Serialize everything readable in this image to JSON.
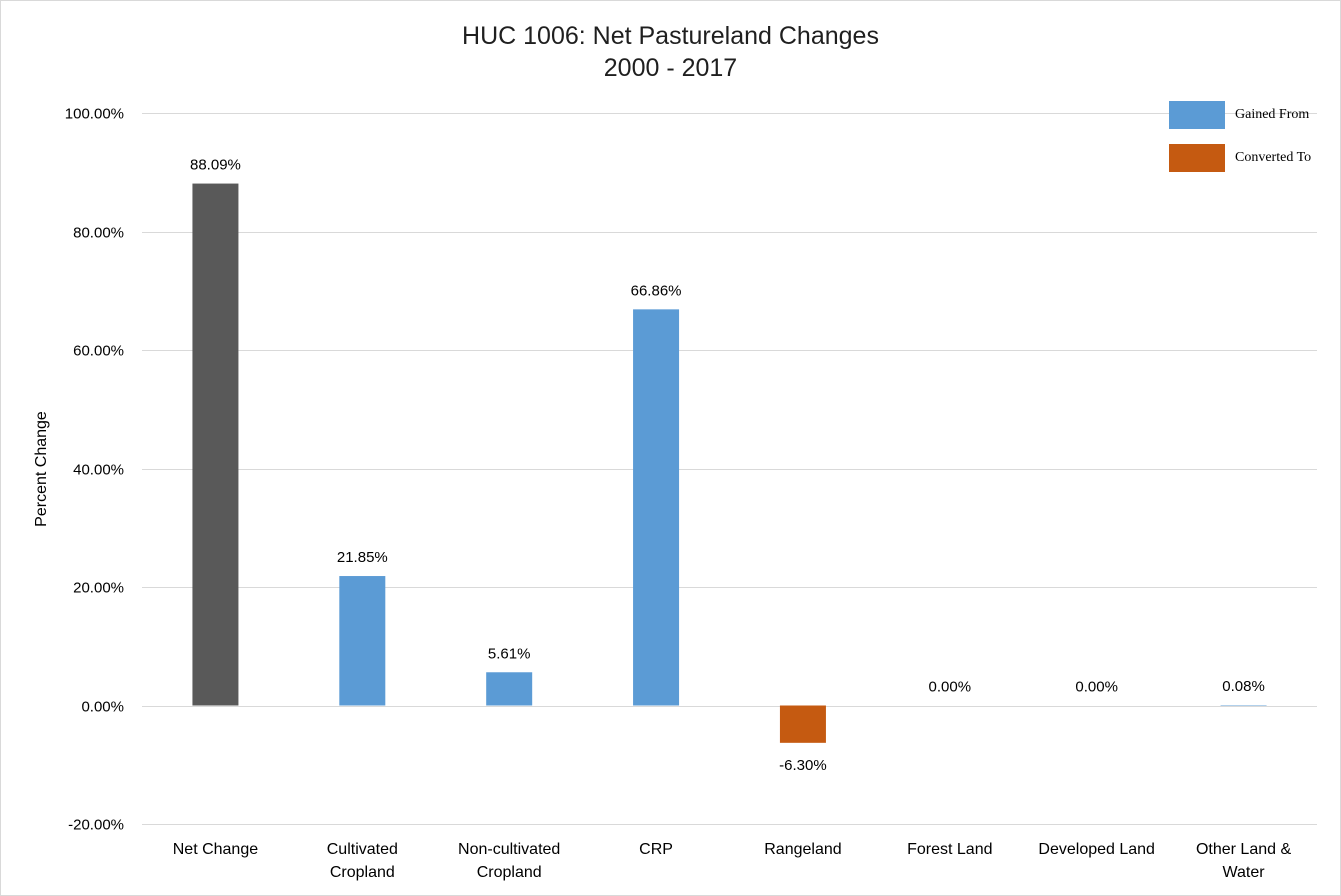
{
  "chart_data": {
    "type": "bar",
    "title": "HUC 1006: Net Pastureland Changes",
    "subtitle": "2000 - 2017",
    "xlabel": "",
    "ylabel": "Percent Change",
    "ylim": [
      -20,
      100
    ],
    "yticks": [
      -20,
      0,
      20,
      40,
      60,
      80,
      100
    ],
    "ytick_labels": [
      "-20.00%",
      "0.00%",
      "20.00%",
      "40.00%",
      "60.00%",
      "80.00%",
      "100.00%"
    ],
    "grid": true,
    "legend_position": "top-right",
    "categories": [
      [
        "Net Change"
      ],
      [
        "Cultivated",
        "Cropland"
      ],
      [
        "Non-cultivated",
        "Cropland"
      ],
      [
        "CRP"
      ],
      [
        "Rangeland"
      ],
      [
        "Forest Land"
      ],
      [
        "Developed Land"
      ],
      [
        "Other Land &",
        "Water"
      ]
    ],
    "values": [
      88.09,
      21.85,
      5.61,
      66.86,
      -6.3,
      0.0,
      0.0,
      0.08
    ],
    "data_labels": [
      "88.09%",
      "21.85%",
      "5.61%",
      "66.86%",
      "-6.30%",
      "0.00%",
      "0.00%",
      "0.08%"
    ],
    "bar_groups": [
      "net",
      "gained",
      "gained",
      "gained",
      "converted",
      "gained",
      "gained",
      "gained"
    ],
    "legend": [
      {
        "key": "gained",
        "label": "Gained From"
      },
      {
        "key": "converted",
        "label": "Converted To"
      }
    ],
    "colors": {
      "net": "#595959",
      "gained": "#5b9bd5",
      "converted": "#c55a11",
      "grid": "#d9d9d9"
    }
  }
}
